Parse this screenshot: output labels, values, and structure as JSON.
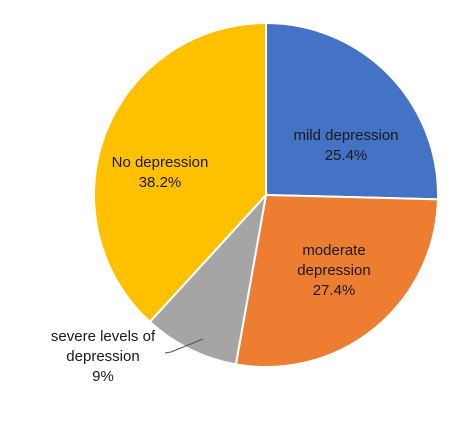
{
  "chart_data": {
    "type": "pie",
    "title": "",
    "start_angle_deg": 0,
    "direction": "clockwise",
    "slices": [
      {
        "name": "mild depression",
        "value": 25.4,
        "value_label": "25.4%",
        "color": "#4472C4",
        "label_lines": [
          "mild depression",
          "25.4%"
        ],
        "label_position": "inside"
      },
      {
        "name": "moderate depression",
        "value": 27.4,
        "value_label": "27.4%",
        "color": "#ED7D31",
        "label_lines": [
          "moderate",
          "depression",
          "27.4%"
        ],
        "label_position": "inside"
      },
      {
        "name": "severe levels of depression",
        "value": 9,
        "value_label": "9%",
        "color": "#A5A5A5",
        "label_lines": [
          "severe levels of",
          "depression",
          "9%"
        ],
        "label_position": "outside"
      },
      {
        "name": "No depression",
        "value": 38.2,
        "value_label": "38.2%",
        "color": "#FFC000",
        "label_lines": [
          "No depression",
          "38.2%"
        ],
        "label_position": "inside"
      }
    ],
    "legend": "none"
  }
}
